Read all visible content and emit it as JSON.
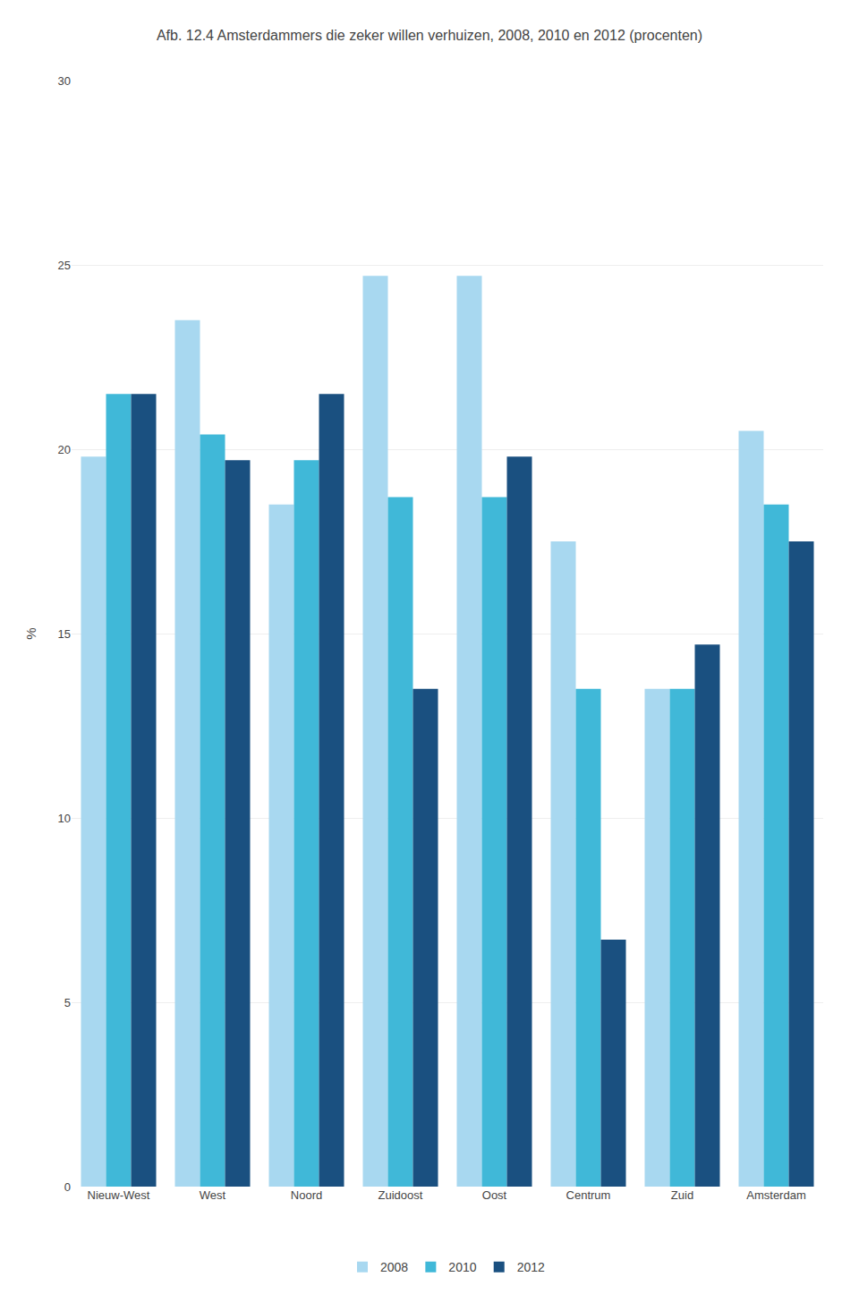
{
  "chart_data": {
    "type": "bar",
    "title": "Afb. 12.4 Amsterdammers die zeker willen verhuizen, 2008, 2010 en 2012 (procenten)",
    "ylabel": "%",
    "categories": [
      "Nieuw-West",
      "West",
      "Noord",
      "Zuidoost",
      "Oost",
      "Centrum",
      "Zuid",
      "Amsterdam"
    ],
    "series": [
      {
        "name": "2008",
        "color": "#a8d8f0",
        "values": [
          19.8,
          23.5,
          18.5,
          24.7,
          24.7,
          17.5,
          13.5,
          20.5
        ]
      },
      {
        "name": "2010",
        "color": "#40b8d8",
        "values": [
          21.5,
          20.4,
          19.7,
          18.7,
          18.7,
          13.5,
          13.5,
          18.5
        ]
      },
      {
        "name": "2012",
        "color": "#1a5080",
        "values": [
          21.5,
          19.7,
          21.5,
          13.5,
          19.8,
          6.7,
          14.7,
          17.5
        ]
      }
    ],
    "ylim": [
      0,
      30
    ],
    "yticks": [
      0,
      5,
      10,
      15,
      20,
      25,
      30
    ],
    "grid": true,
    "legend": "bottom"
  }
}
